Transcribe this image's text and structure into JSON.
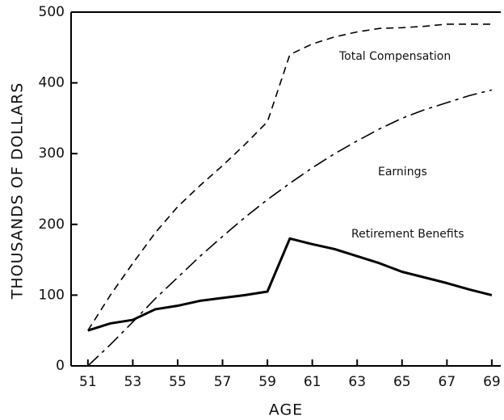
{
  "chart_data": {
    "type": "line",
    "x_label": "AGE",
    "y_label": "THOUSANDS OF DOLLARS",
    "x": [
      51,
      52,
      53,
      54,
      55,
      56,
      57,
      58,
      59,
      60,
      61,
      62,
      63,
      64,
      65,
      66,
      67,
      68,
      69
    ],
    "series": [
      {
        "name": "Total Compensation",
        "color": "#000000",
        "style": "dashed",
        "values": [
          50,
          100,
          145,
          188,
          225,
          255,
          283,
          313,
          345,
          440,
          455,
          465,
          472,
          477,
          478,
          480,
          483,
          483,
          483
        ]
      },
      {
        "name": "Earnings",
        "color": "#000000",
        "style": "dashdot",
        "values": [
          0,
          30,
          62,
          95,
          125,
          155,
          183,
          210,
          235,
          258,
          280,
          300,
          318,
          335,
          350,
          362,
          372,
          382,
          390
        ]
      },
      {
        "name": "Retirement Benefits",
        "color": "#000000",
        "style": "solid",
        "values": [
          50,
          60,
          65,
          80,
          85,
          92,
          96,
          100,
          105,
          180,
          172,
          165,
          155,
          145,
          133,
          125,
          117,
          108,
          100
        ]
      }
    ],
    "xlim": [
      50.25,
      69.4
    ],
    "ylim": [
      0,
      500
    ],
    "xticks": [
      51,
      53,
      55,
      57,
      59,
      61,
      63,
      65,
      67,
      69
    ],
    "yticks": [
      0,
      100,
      200,
      300,
      400,
      500
    ],
    "legend": "inline"
  }
}
